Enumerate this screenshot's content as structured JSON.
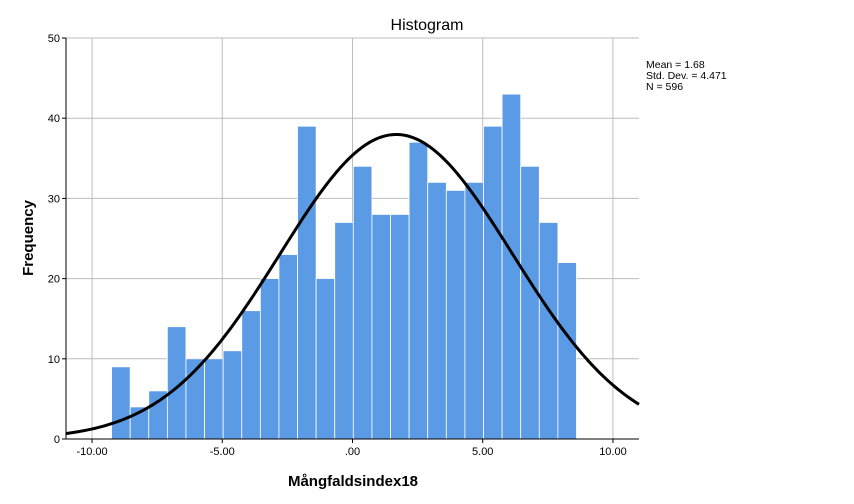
{
  "chart_data": {
    "type": "histogram",
    "title": "Histogram",
    "xlabel": "Mångfaldsindex18",
    "ylabel": "Frequency",
    "xlim": [
      -11,
      11
    ],
    "ylim": [
      0,
      50
    ],
    "x_ticks": [
      -10,
      -5,
      0,
      5,
      10
    ],
    "x_tick_labels": [
      "-10.00",
      "-5.00",
      ".00",
      "5.00",
      "10.00"
    ],
    "y_ticks": [
      0,
      10,
      20,
      30,
      40,
      50
    ],
    "y_tick_labels": [
      "0",
      "10",
      "20",
      "30",
      "40",
      "50"
    ],
    "grid": true,
    "bar_color": "#5b9be6",
    "bar_edge_color": "#ffffff",
    "bins_start": -9.25,
    "bin_width": 0.714,
    "counts": [
      9,
      4,
      6,
      14,
      10,
      10,
      11,
      16,
      20,
      23,
      39,
      20,
      27,
      34,
      28,
      28,
      37,
      32,
      31,
      32,
      39,
      43,
      34,
      27,
      22
    ],
    "normal_curve": {
      "mean": 1.68,
      "std": 4.471,
      "n": 596,
      "color": "#000000"
    },
    "stats": {
      "mean_text": "Mean = 1.68",
      "std_text": "Std. Dev. = 4.471",
      "n_text": "N = 596",
      "placement": "top-right"
    }
  }
}
